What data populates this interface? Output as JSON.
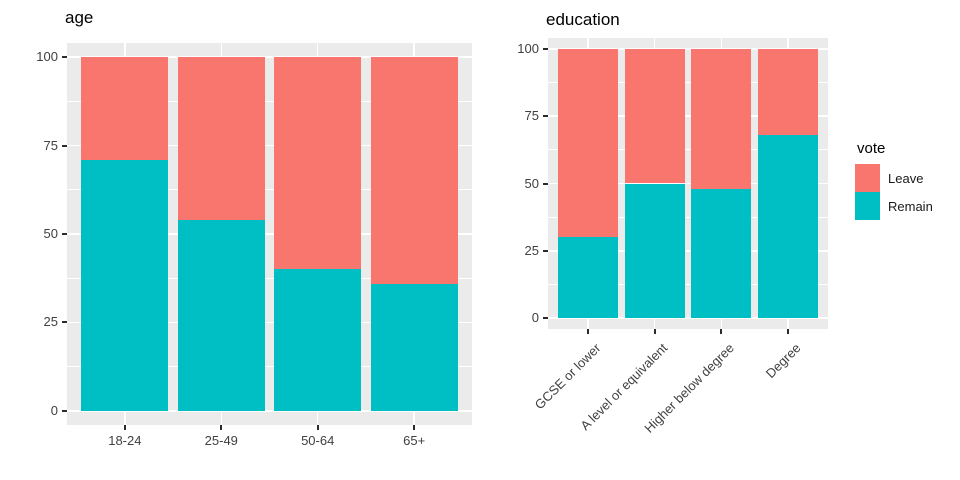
{
  "chart_data": [
    {
      "type": "bar",
      "stacked": true,
      "title": "age",
      "categories": [
        "18-24",
        "25-49",
        "50-64",
        "65+"
      ],
      "series": [
        {
          "name": "Leave",
          "color": "#F8766D",
          "values": [
            29,
            46,
            60,
            64
          ]
        },
        {
          "name": "Remain",
          "color": "#00BFC4",
          "values": [
            71,
            54,
            40,
            36
          ]
        }
      ],
      "ylim": [
        0,
        100
      ],
      "y_ticks": [
        0,
        25,
        50,
        75,
        100
      ],
      "xlabel": "",
      "ylabel": "",
      "grid": true,
      "x_label_rotation": 0
    },
    {
      "type": "bar",
      "stacked": true,
      "title": "education",
      "categories": [
        "GCSE or lower",
        "A level or equivalent",
        "Higher below degree",
        "Degree"
      ],
      "series": [
        {
          "name": "Leave",
          "color": "#F8766D",
          "values": [
            70,
            50,
            52,
            32
          ]
        },
        {
          "name": "Remain",
          "color": "#00BFC4",
          "values": [
            30,
            50,
            48,
            68
          ]
        }
      ],
      "ylim": [
        0,
        100
      ],
      "y_ticks": [
        0,
        25,
        50,
        75,
        100
      ],
      "xlabel": "",
      "ylabel": "",
      "grid": true,
      "x_label_rotation": 45
    }
  ],
  "legend": {
    "title": "vote",
    "position": "right",
    "items": [
      {
        "label": "Leave",
        "color": "#F8766D"
      },
      {
        "label": "Remain",
        "color": "#00BFC4"
      }
    ]
  },
  "style": {
    "panel_bg": "#EBEBEB",
    "grid_color": "#FFFFFF",
    "axis_text_color": "#404040",
    "leave_color": "#F8766D",
    "remain_color": "#00BFC4"
  }
}
